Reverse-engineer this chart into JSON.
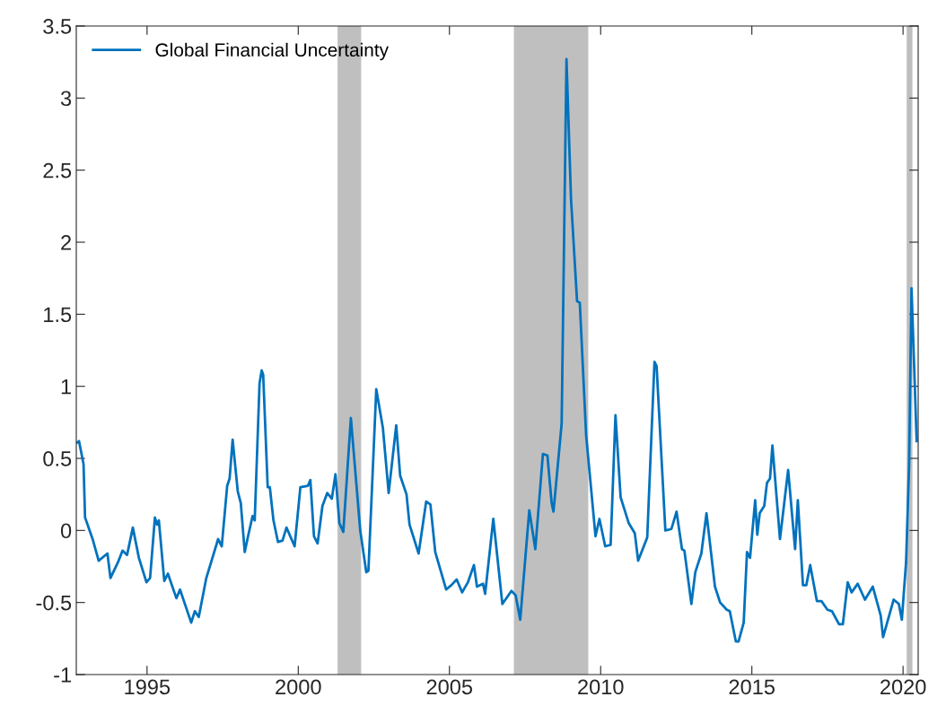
{
  "chart_data": {
    "type": "line",
    "xlim": [
      1992.66,
      2020.5
    ],
    "xticks": [
      1995,
      2000,
      2005,
      2010,
      2015,
      2020
    ],
    "ylim": [
      -1,
      3.5
    ],
    "yticks": [
      -1,
      -0.5,
      0,
      0.5,
      1,
      1.5,
      2,
      2.5,
      3,
      3.5
    ],
    "grid": false,
    "legend": "top left",
    "bands": [
      {
        "axis": "x",
        "from": 2001.3,
        "to": 2002.08,
        "color": "#bfbfbf"
      },
      {
        "axis": "x",
        "from": 2007.13,
        "to": 2009.59,
        "color": "#bfbfbf"
      },
      {
        "axis": "x",
        "from": 2020.12,
        "to": 2020.31,
        "color": "#bfbfbf"
      }
    ],
    "series": [
      {
        "name": "Global Financial Uncertainty",
        "color": "#0072bd",
        "x": [
          1992.69,
          1992.75,
          1992.9,
          1992.95,
          1993.2,
          1993.4,
          1993.69,
          1993.79,
          1994.04,
          1994.19,
          1994.34,
          1994.53,
          1994.73,
          1994.98,
          1995.1,
          1995.26,
          1995.33,
          1995.39,
          1995.57,
          1995.69,
          1995.97,
          1996.09,
          1996.46,
          1996.58,
          1996.71,
          1996.96,
          1997.35,
          1997.47,
          1997.65,
          1997.73,
          1997.83,
          1998.0,
          1998.1,
          1998.23,
          1998.34,
          1998.49,
          1998.56,
          1998.72,
          1998.79,
          1998.84,
          1998.99,
          1999.06,
          1999.18,
          1999.33,
          1999.48,
          1999.61,
          1999.88,
          2000.07,
          2000.32,
          2000.4,
          2000.52,
          2000.64,
          2000.8,
          2000.96,
          2001.11,
          2001.23,
          2001.36,
          2001.49,
          2001.74,
          2002.05,
          2002.25,
          2002.32,
          2002.58,
          2002.8,
          2002.99,
          2003.24,
          2003.37,
          2003.58,
          2003.68,
          2003.98,
          2004.23,
          2004.37,
          2004.53,
          2004.89,
          2005.06,
          2005.24,
          2005.42,
          2005.61,
          2005.81,
          2005.91,
          2006.11,
          2006.18,
          2006.45,
          2006.75,
          2007.05,
          2007.19,
          2007.34,
          2007.64,
          2007.84,
          2008.09,
          2008.24,
          2008.38,
          2008.44,
          2008.71,
          2008.87,
          2009.02,
          2009.22,
          2009.31,
          2009.52,
          2009.83,
          2009.96,
          2010.15,
          2010.33,
          2010.49,
          2010.66,
          2010.93,
          2011.13,
          2011.24,
          2011.54,
          2011.78,
          2011.85,
          2012.14,
          2012.34,
          2012.51,
          2012.69,
          2012.77,
          2013.0,
          2013.13,
          2013.33,
          2013.5,
          2013.78,
          2013.95,
          2014.17,
          2014.27,
          2014.47,
          2014.56,
          2014.73,
          2014.84,
          2014.94,
          2015.11,
          2015.18,
          2015.26,
          2015.41,
          2015.5,
          2015.6,
          2015.68,
          2015.93,
          2016.2,
          2016.43,
          2016.52,
          2016.69,
          2016.8,
          2016.93,
          2017.15,
          2017.3,
          2017.5,
          2017.65,
          2017.88,
          2018.01,
          2018.17,
          2018.3,
          2018.5,
          2018.74,
          2019.0,
          2019.26,
          2019.34,
          2019.46,
          2019.69,
          2019.86,
          2019.96,
          2020.1,
          2020.2,
          2020.28,
          2020.45
        ],
        "values": [
          0.61,
          0.62,
          0.46,
          0.09,
          -0.06,
          -0.21,
          -0.16,
          -0.33,
          -0.22,
          -0.14,
          -0.17,
          0.02,
          -0.19,
          -0.36,
          -0.33,
          0.09,
          0.04,
          0.07,
          -0.35,
          -0.3,
          -0.47,
          -0.41,
          -0.64,
          -0.56,
          -0.6,
          -0.33,
          -0.06,
          -0.11,
          0.31,
          0.36,
          0.63,
          0.27,
          0.19,
          -0.15,
          -0.04,
          0.1,
          0.07,
          1.02,
          1.11,
          1.08,
          0.3,
          0.3,
          0.07,
          -0.08,
          -0.07,
          0.02,
          -0.11,
          0.3,
          0.31,
          0.35,
          -0.04,
          -0.09,
          0.17,
          0.26,
          0.22,
          0.39,
          0.05,
          -0.01,
          0.78,
          0.0,
          -0.29,
          -0.28,
          0.98,
          0.71,
          0.26,
          0.73,
          0.38,
          0.25,
          0.04,
          -0.16,
          0.2,
          0.18,
          -0.15,
          -0.41,
          -0.38,
          -0.34,
          -0.43,
          -0.36,
          -0.24,
          -0.39,
          -0.37,
          -0.44,
          0.08,
          -0.51,
          -0.42,
          -0.45,
          -0.62,
          0.14,
          -0.13,
          0.53,
          0.52,
          0.19,
          0.13,
          0.74,
          3.27,
          2.3,
          1.59,
          1.58,
          0.66,
          -0.04,
          0.08,
          -0.11,
          -0.1,
          0.8,
          0.23,
          0.05,
          -0.02,
          -0.21,
          -0.05,
          1.17,
          1.14,
          0.0,
          0.01,
          0.13,
          -0.13,
          -0.14,
          -0.51,
          -0.29,
          -0.16,
          0.12,
          -0.39,
          -0.5,
          -0.55,
          -0.56,
          -0.77,
          -0.77,
          -0.64,
          -0.15,
          -0.19,
          0.21,
          -0.03,
          0.12,
          0.17,
          0.33,
          0.36,
          0.59,
          -0.06,
          0.42,
          -0.13,
          0.21,
          -0.38,
          -0.38,
          -0.24,
          -0.49,
          -0.49,
          -0.55,
          -0.56,
          -0.65,
          -0.65,
          -0.36,
          -0.43,
          -0.37,
          -0.48,
          -0.39,
          -0.59,
          -0.74,
          -0.65,
          -0.48,
          -0.51,
          -0.62,
          -0.22,
          0.46,
          1.68,
          0.62
        ]
      }
    ]
  }
}
